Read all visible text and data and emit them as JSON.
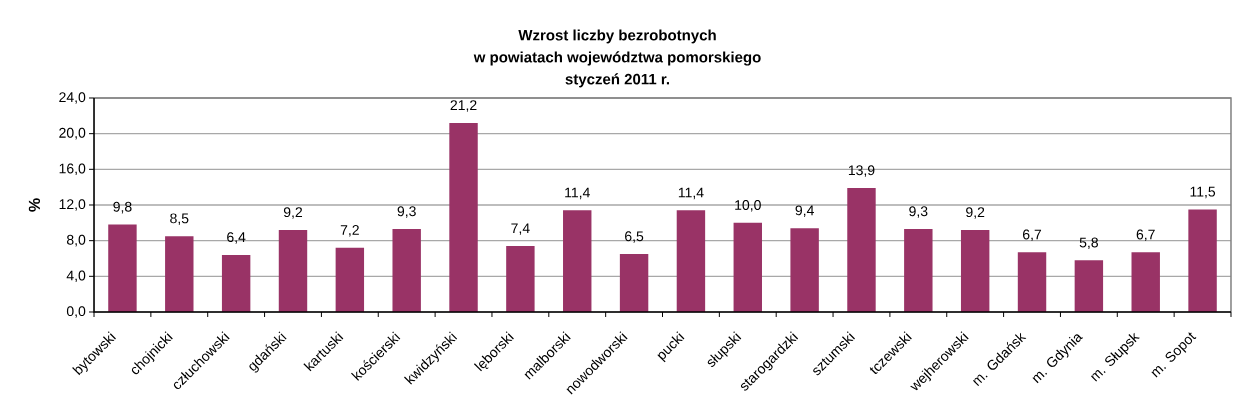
{
  "chart_data": {
    "type": "bar",
    "title": "Wzrost liczby bezrobotnych\nw powiatach województwa pomorskiego\nstyczeń 2011 r.",
    "ylabel": "%",
    "categories": [
      "bytowski",
      "chojnicki",
      "człuchowski",
      "gdański",
      "kartuski",
      "kościerski",
      "kwidzyński",
      "lęborski",
      "malborski",
      "nowodworski",
      "pucki",
      "słupski",
      "starogardzki",
      "sztumski",
      "tczewski",
      "wejherowski",
      "m. Gdańsk",
      "m. Gdynia",
      "m. Słupsk",
      "m. Sopot"
    ],
    "values": [
      9.8,
      8.5,
      6.4,
      9.2,
      7.2,
      9.3,
      21.2,
      7.4,
      11.4,
      6.5,
      11.4,
      10.0,
      9.4,
      13.9,
      9.3,
      9.2,
      6.7,
      5.8,
      6.7,
      11.5
    ],
    "value_labels": [
      "9,8",
      "8,5",
      "6,4",
      "9,2",
      "7,2",
      "9,3",
      "21,2",
      "7,4",
      "11,4",
      "6,5",
      "11,4",
      "10,0",
      "9,4",
      "13,9",
      "9,3",
      "9,2",
      "6,7",
      "5,8",
      "6,7",
      "11,5"
    ],
    "color": "#993366",
    "ylim": [
      0,
      24
    ],
    "yticks": [
      {
        "value": 0,
        "label": "0,0"
      },
      {
        "value": 4,
        "label": "4,0"
      },
      {
        "value": 8,
        "label": "8,0"
      },
      {
        "value": 12,
        "label": "12,0"
      },
      {
        "value": 16,
        "label": "16,0"
      },
      {
        "value": 20,
        "label": "20,0"
      },
      {
        "value": 24,
        "label": "24,0"
      }
    ],
    "grid": "y"
  }
}
